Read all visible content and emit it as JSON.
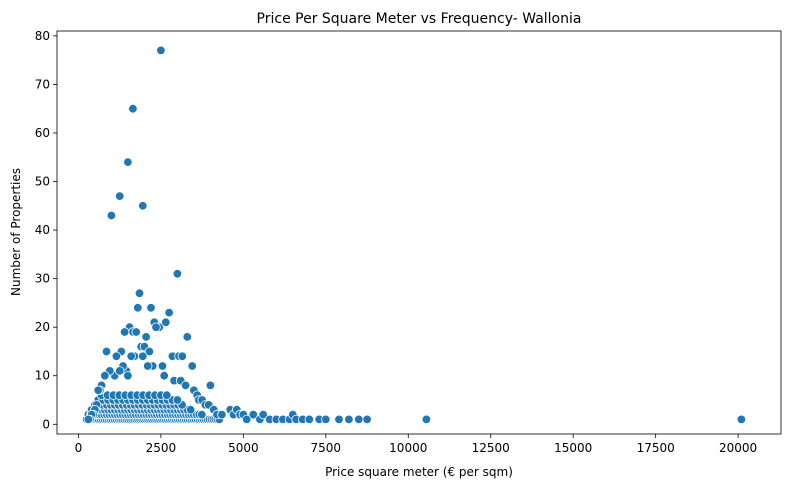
{
  "chart_data": {
    "type": "scatter",
    "title": "Price Per Square Meter vs Frequency- Wallonia",
    "xlabel": "Price square meter (€ per sqm)",
    "ylabel": "Number of Properties",
    "xlim": [
      -650,
      21300
    ],
    "ylim": [
      -2,
      81
    ],
    "x_ticks": [
      0,
      2500,
      5000,
      7500,
      10000,
      12500,
      15000,
      17500,
      20000
    ],
    "y_ticks": [
      0,
      10,
      20,
      30,
      40,
      50,
      60,
      70,
      80
    ],
    "x_tick_labels": [
      "0",
      "2500",
      "5000",
      "7500",
      "10000",
      "12500",
      "15000",
      "17500",
      "20000"
    ],
    "y_tick_labels": [
      "0",
      "10",
      "20",
      "30",
      "40",
      "50",
      "60",
      "70",
      "80"
    ],
    "grid": false,
    "legend": false,
    "color": "#1f77b4",
    "marker_edge_color": "#ffffff",
    "series": [
      {
        "points": [
          [
            2500,
            77
          ],
          [
            1650,
            65
          ],
          [
            1500,
            54
          ],
          [
            1250,
            47
          ],
          [
            1000,
            43
          ],
          [
            1950,
            45
          ],
          [
            3000,
            31
          ],
          [
            1800,
            24
          ],
          [
            1850,
            27
          ],
          [
            2200,
            24
          ],
          [
            2750,
            23
          ],
          [
            1550,
            20
          ],
          [
            1650,
            19
          ],
          [
            1750,
            19
          ],
          [
            1400,
            19
          ],
          [
            2450,
            20
          ],
          [
            2650,
            21
          ],
          [
            2300,
            21
          ],
          [
            2350,
            20
          ],
          [
            1900,
            16
          ],
          [
            2000,
            16
          ],
          [
            2150,
            15
          ],
          [
            2250,
            12
          ],
          [
            2850,
            14
          ],
          [
            3050,
            14
          ],
          [
            3150,
            14
          ],
          [
            3300,
            18
          ],
          [
            2550,
            12
          ],
          [
            2100,
            12
          ],
          [
            1300,
            15
          ],
          [
            850,
            15
          ],
          [
            1150,
            14
          ],
          [
            1700,
            14
          ],
          [
            1600,
            14
          ],
          [
            3450,
            12
          ],
          [
            2050,
            18
          ],
          [
            1950,
            14
          ],
          [
            1450,
            11
          ],
          [
            1350,
            12
          ],
          [
            1100,
            10
          ],
          [
            1250,
            11
          ],
          [
            1500,
            10
          ],
          [
            950,
            11
          ],
          [
            800,
            10
          ],
          [
            2600,
            10
          ],
          [
            2900,
            9
          ],
          [
            3100,
            9
          ],
          [
            3250,
            8
          ],
          [
            3500,
            7
          ],
          [
            3600,
            6
          ],
          [
            3650,
            5
          ],
          [
            4000,
            8
          ],
          [
            3750,
            5
          ],
          [
            3850,
            4
          ],
          [
            3950,
            4
          ],
          [
            4100,
            3
          ],
          [
            4200,
            2
          ],
          [
            4350,
            2
          ],
          [
            700,
            8
          ],
          [
            650,
            7
          ],
          [
            600,
            7
          ],
          [
            550,
            4
          ],
          [
            500,
            3
          ],
          [
            450,
            2
          ],
          [
            400,
            2
          ],
          [
            350,
            1
          ],
          [
            300,
            1
          ],
          [
            4600,
            3
          ],
          [
            4700,
            2
          ],
          [
            4800,
            3
          ],
          [
            4900,
            2
          ],
          [
            5000,
            2
          ],
          [
            5100,
            1
          ],
          [
            5300,
            2
          ],
          [
            5500,
            1
          ],
          [
            5600,
            2
          ],
          [
            5800,
            1
          ],
          [
            6000,
            1
          ],
          [
            6200,
            1
          ],
          [
            6400,
            1
          ],
          [
            6500,
            2
          ],
          [
            6600,
            1
          ],
          [
            6800,
            1
          ],
          [
            7000,
            1
          ],
          [
            7300,
            1
          ],
          [
            7500,
            1
          ],
          [
            7900,
            1
          ],
          [
            8200,
            1
          ],
          [
            8500,
            1
          ],
          [
            8750,
            1
          ],
          [
            10550,
            1
          ],
          [
            20100,
            1
          ]
        ]
      }
    ]
  }
}
